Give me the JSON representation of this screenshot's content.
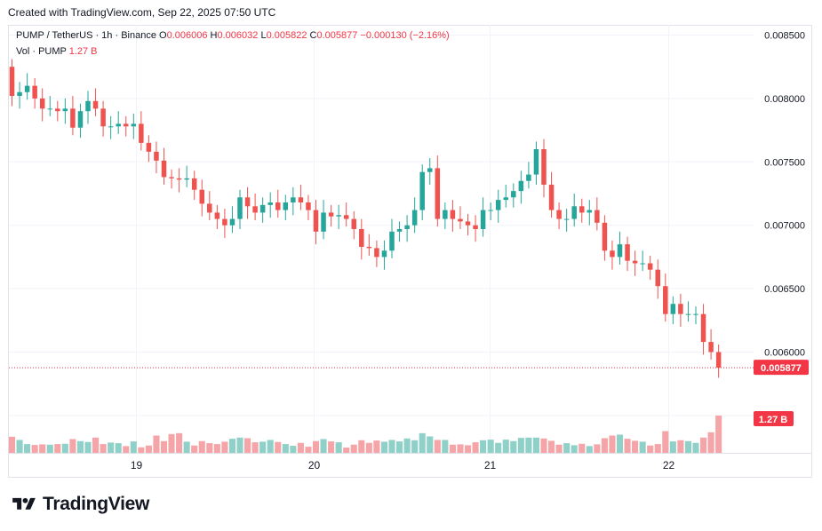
{
  "header": {
    "created_with": "Created with TradingView.com, Sep 22, 2025 07:50 UTC"
  },
  "legend": {
    "symbol": "PUMP / TetherUS · 1h · Binance",
    "o_label": "O",
    "o_value": "0.006006",
    "h_label": "H",
    "h_value": "0.006032",
    "l_label": "L",
    "l_value": "0.005822",
    "c_label": "C",
    "c_value": "0.005877",
    "change": "−0.000130 (−2.16%)",
    "vol_label": "Vol · PUMP",
    "vol_value": "1.27 B"
  },
  "brand": {
    "name": "TradingView",
    "logo_icon": "tradingview-logo-icon"
  },
  "colors": {
    "up": "#26a69a",
    "down": "#ef5350",
    "up_vol": "#8fd1c8",
    "down_vol": "#f5a5a8",
    "grid": "#f0f3fa",
    "price_line": "#f23645"
  },
  "chart_data": {
    "type": "candlestick",
    "symbol": "PUMP / TetherUS",
    "interval": "1h",
    "exchange": "Binance",
    "y_axis": {
      "ticks": [
        "0.008500",
        "0.008000",
        "0.007500",
        "0.007000",
        "0.006500",
        "0.006000"
      ],
      "ylim": [
        0.00537,
        0.00854
      ]
    },
    "x_axis": {
      "ticks": [
        "19",
        "20",
        "21",
        "22"
      ]
    },
    "last_price_label": "0.005877",
    "volume_label": "1.27 B",
    "grid": true,
    "close": [
      0.00802,
      0.00805,
      0.0081,
      0.008,
      0.00792,
      0.00792,
      0.0079,
      0.00792,
      0.00777,
      0.0079,
      0.00798,
      0.00792,
      0.00778,
      0.00778,
      0.0078,
      0.00778,
      0.0078,
      0.00765,
      0.00758,
      0.00751,
      0.00738,
      0.00737,
      0.00736,
      0.00737,
      0.00728,
      0.00717,
      0.0071,
      0.00705,
      0.007,
      0.00705,
      0.00722,
      0.00715,
      0.0071,
      0.00716,
      0.00718,
      0.00712,
      0.00718,
      0.00722,
      0.00718,
      0.00712,
      0.00695,
      0.0071,
      0.00707,
      0.00708,
      0.00705,
      0.00697,
      0.00683,
      0.00682,
      0.00675,
      0.0068,
      0.00695,
      0.00697,
      0.007,
      0.00712,
      0.00742,
      0.00745,
      0.00705,
      0.00712,
      0.00705,
      0.00703,
      0.007,
      0.00697,
      0.00712,
      0.00712,
      0.0072,
      0.00722,
      0.00727,
      0.00735,
      0.0074,
      0.0076,
      0.00732,
      0.00712,
      0.00705,
      0.00705,
      0.00715,
      0.0071,
      0.00712,
      0.00702,
      0.0068,
      0.00675,
      0.00685,
      0.00672,
      0.0067,
      0.0067,
      0.00665,
      0.00652,
      0.0063,
      0.00638,
      0.0063,
      0.0063,
      0.0063,
      0.00608,
      0.006,
      0.005877
    ],
    "volume": [
      0.55,
      0.44,
      0.3,
      0.27,
      0.29,
      0.28,
      0.3,
      0.31,
      0.47,
      0.4,
      0.37,
      0.52,
      0.3,
      0.35,
      0.33,
      0.23,
      0.39,
      0.19,
      0.25,
      0.59,
      0.4,
      0.64,
      0.67,
      0.38,
      0.25,
      0.4,
      0.33,
      0.3,
      0.38,
      0.48,
      0.52,
      0.5,
      0.36,
      0.38,
      0.44,
      0.37,
      0.3,
      0.24,
      0.34,
      0.21,
      0.4,
      0.47,
      0.39,
      0.36,
      0.18,
      0.28,
      0.43,
      0.34,
      0.42,
      0.38,
      0.44,
      0.39,
      0.49,
      0.43,
      0.67,
      0.56,
      0.44,
      0.44,
      0.28,
      0.29,
      0.26,
      0.36,
      0.43,
      0.45,
      0.34,
      0.45,
      0.4,
      0.51,
      0.52,
      0.52,
      0.49,
      0.41,
      0.28,
      0.33,
      0.26,
      0.31,
      0.23,
      0.29,
      0.5,
      0.59,
      0.62,
      0.48,
      0.41,
      0.38,
      0.25,
      0.3,
      0.74,
      0.39,
      0.43,
      0.4,
      0.34,
      0.52,
      0.7,
      1.27
    ]
  }
}
